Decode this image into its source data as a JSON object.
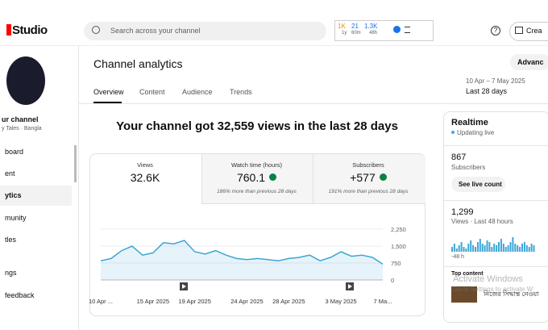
{
  "header": {
    "logo": "Studio",
    "search_placeholder": "Search across your channel",
    "stats": [
      {
        "value": "1K",
        "period": "1y"
      },
      {
        "value": "21",
        "period": "60m"
      },
      {
        "value": "1.3K",
        "period": "48h"
      }
    ],
    "create": "Crea"
  },
  "sidebar": {
    "channel_name": "ur channel",
    "channel_sub": "y Tales · Bangla",
    "items": [
      "board",
      "ent",
      "ytics",
      "munity",
      "tles",
      "ngs",
      "feedback"
    ]
  },
  "page": {
    "title": "Channel analytics",
    "advanced": "Advanc",
    "tabs": [
      "Overview",
      "Content",
      "Audience",
      "Trends"
    ],
    "date_range": "10 Apr – 7 May 2025",
    "period": "Last 28 days",
    "headline": "Your channel got 32,559 views in the last 28 days"
  },
  "metrics": [
    {
      "label": "Views",
      "value": "32.6K"
    },
    {
      "label": "Watch time (hours)",
      "value": "760.1",
      "note": "186% more than previous 28 days"
    },
    {
      "label": "Subscribers",
      "value": "+577",
      "note": "191% more than previous 28 days"
    }
  ],
  "chart_data": {
    "type": "line",
    "color": "#3ea6d6",
    "categories": [
      "10 Apr ...",
      null,
      null,
      null,
      null,
      "15 Apr 2025",
      null,
      null,
      null,
      "19 Apr 2025",
      null,
      null,
      null,
      null,
      "24 Apr 2025",
      null,
      null,
      null,
      "28 Apr 2025",
      null,
      null,
      null,
      null,
      "3 May 2025",
      null,
      null,
      null,
      "7 Ma..."
    ],
    "values": [
      850,
      950,
      1300,
      1500,
      1100,
      1200,
      1650,
      1600,
      1750,
      1250,
      1150,
      1300,
      1100,
      950,
      900,
      950,
      900,
      850,
      950,
      1000,
      1100,
      850,
      1000,
      1250,
      1050,
      1100,
      1000,
      700
    ],
    "ylim": [
      0,
      2250
    ],
    "yticks": [
      0,
      {
        "value": 750,
        "label": "750"
      },
      {
        "value": 1500,
        "label": "1,500"
      },
      {
        "value": 2250,
        "label": "2,250"
      }
    ],
    "grid": true
  },
  "realtime": {
    "title": "Realtime",
    "status": "Updating live",
    "subscribers": "867",
    "subscribers_label": "Subscribers",
    "live_button": "See live count",
    "views": "1,299",
    "views_label": "Views · Last 48 hours",
    "bars": [
      3,
      5,
      2,
      4,
      6,
      3,
      2,
      5,
      7,
      4,
      3,
      6,
      8,
      5,
      4,
      7,
      6,
      3,
      5,
      4,
      6,
      8,
      5,
      3,
      4,
      6,
      9,
      5,
      4,
      3,
      5,
      6,
      4,
      3,
      5,
      4
    ],
    "bars_axis": "-48 h",
    "top_content": "Top content",
    "top_item": "নিজের সিদ্ধান্ত নেওয়া"
  },
  "watermark": {
    "line1": "Activate Windows",
    "line2": "Go to Settings to activate W"
  }
}
